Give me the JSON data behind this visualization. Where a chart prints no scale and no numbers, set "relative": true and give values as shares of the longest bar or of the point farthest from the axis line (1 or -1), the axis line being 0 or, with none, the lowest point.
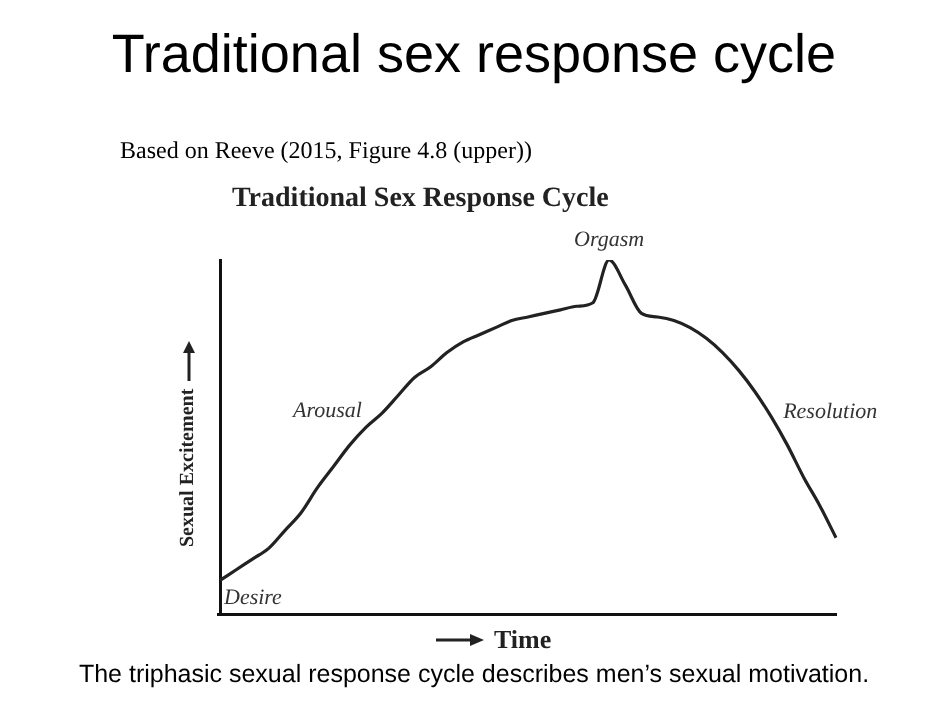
{
  "chart_data": {
    "type": "line",
    "title": "Traditional sex response cycle",
    "subtitle": "Traditional Sex Response Cycle",
    "xlabel": "Time",
    "ylabel": "Sexual Excitement",
    "relative": true,
    "color": "#222222",
    "marker": "none",
    "line_style": "solid",
    "grid": false,
    "legend": false,
    "categories": [
      null,
      null,
      null,
      null,
      null,
      null,
      null,
      null,
      null,
      null,
      null,
      null,
      null,
      null,
      null,
      null,
      null,
      null,
      null,
      null,
      null,
      null,
      null,
      null,
      null,
      null,
      null,
      null,
      null,
      null,
      null,
      null,
      null,
      null,
      null,
      null,
      null,
      null,
      null
    ],
    "values": [
      0.1,
      0.13,
      0.16,
      0.19,
      0.24,
      0.29,
      0.36,
      0.42,
      0.48,
      0.53,
      0.57,
      0.62,
      0.67,
      0.7,
      0.74,
      0.77,
      0.79,
      0.81,
      0.83,
      0.84,
      0.85,
      0.86,
      0.87,
      0.88,
      1.0,
      0.93,
      0.85,
      0.84,
      0.83,
      0.81,
      0.78,
      0.74,
      0.69,
      0.63,
      0.56,
      0.48,
      0.39,
      0.31,
      0.22
    ],
    "annotations": [
      "Based on Reeve (2015, Figure 4.8 (upper))",
      "The triphasic sexual response cycle describes men’s sexual motivation.",
      "Desire",
      "Arousal",
      "Orgasm",
      "Resolution"
    ]
  }
}
